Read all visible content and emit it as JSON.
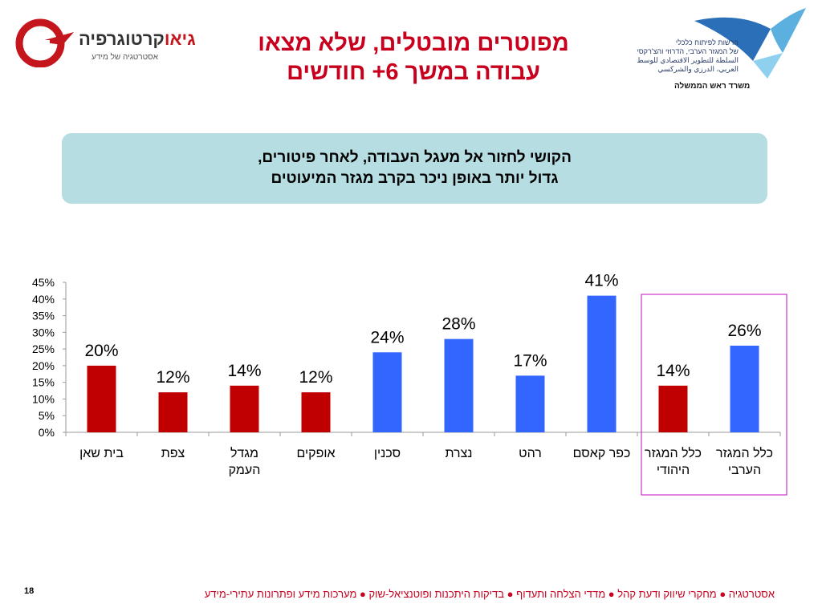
{
  "logo_left": {
    "name_bold": "גיאו",
    "name_rest": "קרטוגרפיה",
    "tagline": "אסטרטגיה של מידע"
  },
  "title": {
    "line1": "מפוטרים מובטלים, שלא מצאו",
    "line2": "עבודה במשך 6+ חודשים"
  },
  "logo_right": {
    "lines": [
      "הרשות לפיתוח כלכלי",
      "של המגזר הערבי, הדרוזי והצ'רקסי",
      "السلطة للتطوير الاقتصادي للوسط",
      "العربي، الدرزي والشركسي"
    ],
    "caption": "משרד ראש הממשלה"
  },
  "banner": {
    "line1": "הקושי לחזור אל מעגל העבודה, לאחר פיטורים,",
    "line2": "גדול יותר באופן ניכר בקרב מגזר המיעוטים"
  },
  "colors": {
    "jewish": "#c00000",
    "arab": "#3366ff",
    "highlight": "#cc33cc",
    "title": "#c8001e"
  },
  "chart_data": {
    "type": "bar",
    "categories": [
      [
        "בית שאן"
      ],
      [
        "צפת"
      ],
      [
        "מגדל",
        "העמק"
      ],
      [
        "אופקים"
      ],
      [
        "סכנין"
      ],
      [
        "נצרת"
      ],
      [
        "רהט"
      ],
      [
        "כפר קאסם"
      ],
      [
        "כלל המגזר",
        "היהודי"
      ],
      [
        "כלל המגזר",
        "הערבי"
      ]
    ],
    "values": [
      20,
      12,
      14,
      12,
      24,
      28,
      17,
      41,
      14,
      26
    ],
    "value_labels": [
      "20%",
      "12%",
      "14%",
      "12%",
      "24%",
      "28%",
      "17%",
      "41%",
      "14%",
      "26%"
    ],
    "bar_colors": [
      "jewish",
      "jewish",
      "jewish",
      "jewish",
      "arab",
      "arab",
      "arab",
      "arab",
      "jewish",
      "arab"
    ],
    "highlighted_categories": [
      8,
      9
    ],
    "y_ticks": [
      "0%",
      "5%",
      "10%",
      "15%",
      "20%",
      "25%",
      "30%",
      "35%",
      "40%",
      "45%"
    ],
    "ylim": [
      0,
      45
    ],
    "grid": false,
    "legend": "none"
  },
  "footer": {
    "page_number": "18",
    "text": "אסטרטגיה ● מחקרי שיווק ודעת קהל ● מדדי הצלחה ותעדוף ● בדיקות היתכנות ופוטנציאל-שוק ● מערכות מידע ופתרונות עתירי-מידע"
  }
}
